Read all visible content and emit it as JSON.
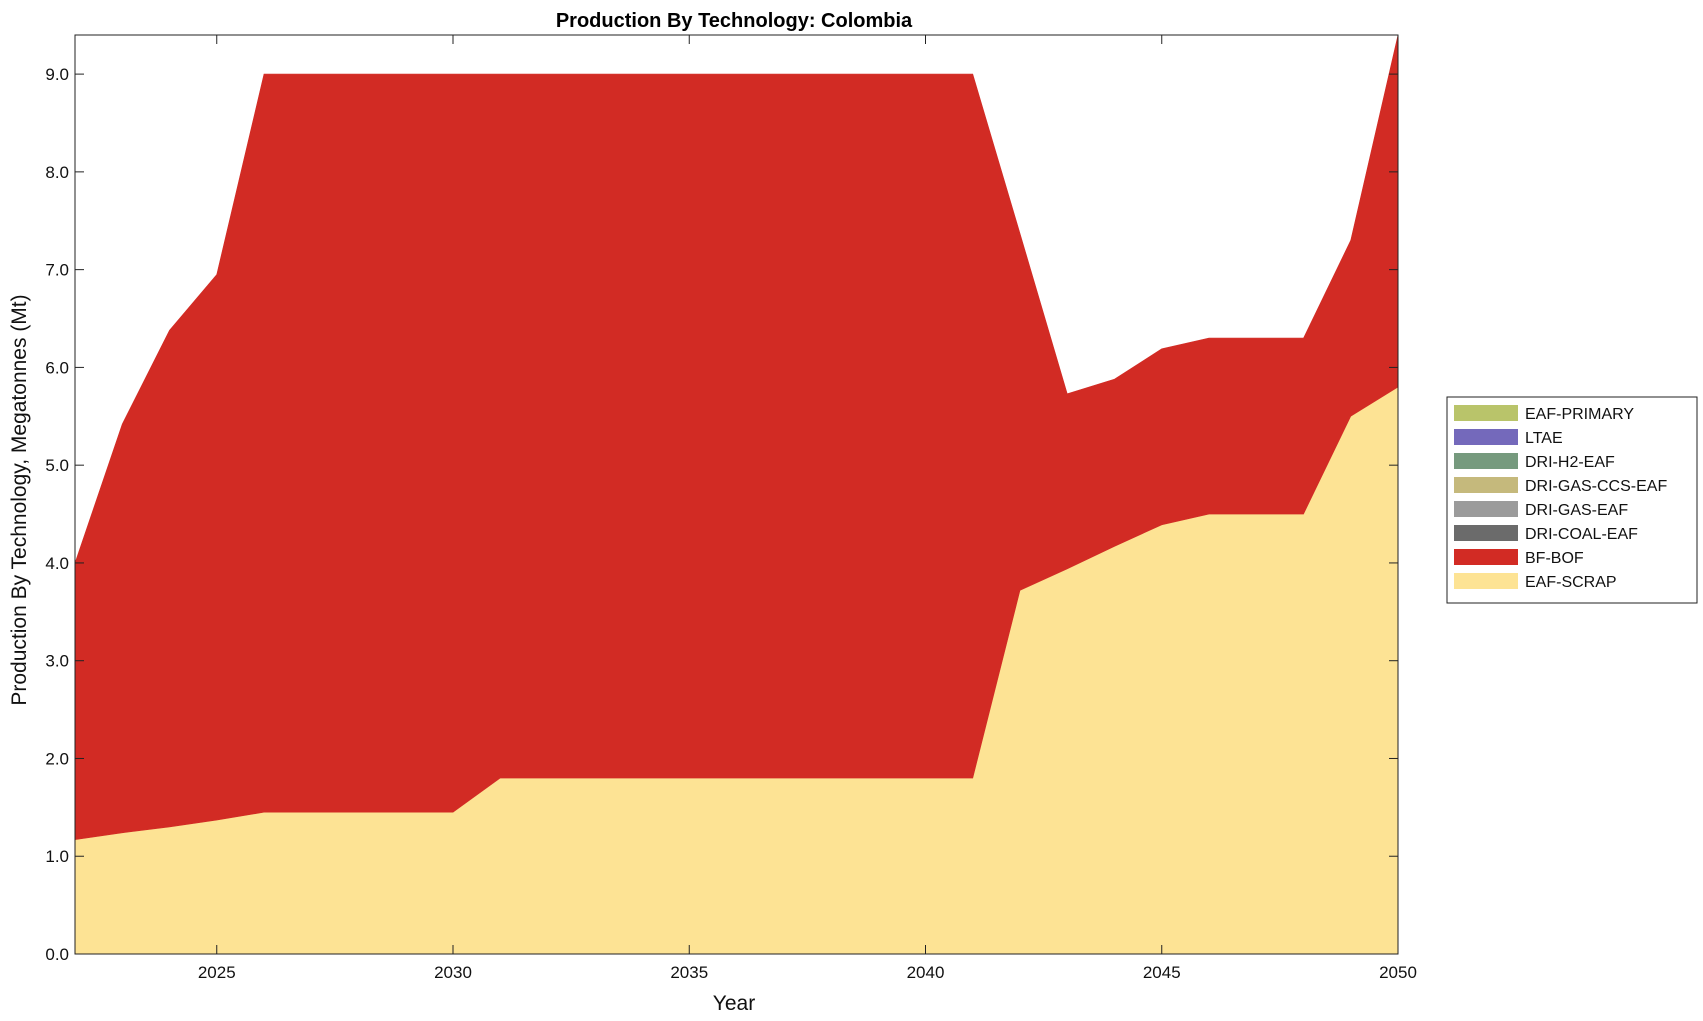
{
  "chart_data": {
    "type": "area",
    "stacked": true,
    "title": "Production By Technology: Colombia",
    "xlabel": "Year",
    "ylabel": "Production By Technology, Megatonnes (Mt)",
    "xlim": [
      2022,
      2050
    ],
    "ylim": [
      0,
      9.4
    ],
    "xticks": [
      "2025",
      "2030",
      "2035",
      "2040",
      "2045",
      "2050"
    ],
    "yticks": [
      "0.0",
      "1.0",
      "2.0",
      "3.0",
      "4.0",
      "5.0",
      "6.0",
      "7.0",
      "8.0",
      "9.0"
    ],
    "grid": false,
    "legend_position": "right",
    "x": [
      2022,
      2023,
      2024,
      2025,
      2026,
      2027,
      2028,
      2029,
      2030,
      2031,
      2032,
      2033,
      2034,
      2035,
      2036,
      2037,
      2038,
      2039,
      2040,
      2041,
      2042,
      2043,
      2044,
      2045,
      2046,
      2047,
      2048,
      2049,
      2050
    ],
    "series": [
      {
        "name": "EAF-SCRAP",
        "color": "#fde394",
        "values": [
          1.17,
          1.24,
          1.3,
          1.37,
          1.45,
          1.45,
          1.45,
          1.45,
          1.45,
          1.8,
          1.8,
          1.8,
          1.8,
          1.8,
          1.8,
          1.8,
          1.8,
          1.8,
          1.8,
          1.8,
          3.72,
          3.94,
          4.17,
          4.39,
          4.5,
          4.5,
          4.5,
          5.5,
          5.8
        ]
      },
      {
        "name": "BF-BOF",
        "color": "#d22b24",
        "values": [
          2.83,
          4.18,
          5.08,
          5.58,
          7.55,
          7.55,
          7.55,
          7.55,
          7.55,
          7.2,
          7.2,
          7.2,
          7.2,
          7.2,
          7.2,
          7.2,
          7.2,
          7.2,
          7.2,
          7.2,
          3.65,
          1.79,
          1.71,
          1.8,
          1.8,
          1.8,
          1.8,
          1.8,
          3.6
        ]
      },
      {
        "name": "DRI-COAL-EAF",
        "color": "#6b6b6b",
        "values": [
          0,
          0,
          0,
          0,
          0,
          0,
          0,
          0,
          0,
          0,
          0,
          0,
          0,
          0,
          0,
          0,
          0,
          0,
          0,
          0,
          0,
          0,
          0,
          0,
          0,
          0,
          0,
          0,
          0
        ]
      },
      {
        "name": "DRI-GAS-EAF",
        "color": "#9b9b9b",
        "values": [
          0,
          0,
          0,
          0,
          0,
          0,
          0,
          0,
          0,
          0,
          0,
          0,
          0,
          0,
          0,
          0,
          0,
          0,
          0,
          0,
          0,
          0,
          0,
          0,
          0,
          0,
          0,
          0,
          0
        ]
      },
      {
        "name": "DRI-GAS-CCS-EAF",
        "color": "#c5b97c",
        "values": [
          0,
          0,
          0,
          0,
          0,
          0,
          0,
          0,
          0,
          0,
          0,
          0,
          0,
          0,
          0,
          0,
          0,
          0,
          0,
          0,
          0,
          0,
          0,
          0,
          0,
          0,
          0,
          0,
          0
        ]
      },
      {
        "name": "DRI-H2-EAF",
        "color": "#769a7e",
        "values": [
          0,
          0,
          0,
          0,
          0,
          0,
          0,
          0,
          0,
          0,
          0,
          0,
          0,
          0,
          0,
          0,
          0,
          0,
          0,
          0,
          0,
          0,
          0,
          0,
          0,
          0,
          0,
          0,
          0
        ]
      },
      {
        "name": "LTAE",
        "color": "#7469bb",
        "values": [
          0,
          0,
          0,
          0,
          0,
          0,
          0,
          0,
          0,
          0,
          0,
          0,
          0,
          0,
          0,
          0,
          0,
          0,
          0,
          0,
          0,
          0,
          0,
          0,
          0,
          0,
          0,
          0,
          0
        ]
      },
      {
        "name": "EAF-PRIMARY",
        "color": "#b9c46a",
        "values": [
          0,
          0,
          0,
          0,
          0,
          0,
          0,
          0,
          0,
          0,
          0,
          0,
          0,
          0,
          0,
          0,
          0,
          0,
          0,
          0,
          0,
          0,
          0,
          0,
          0,
          0,
          0,
          0,
          0
        ]
      }
    ],
    "legend_order": [
      "EAF-PRIMARY",
      "LTAE",
      "DRI-H2-EAF",
      "DRI-GAS-CCS-EAF",
      "DRI-GAS-EAF",
      "DRI-COAL-EAF",
      "BF-BOF",
      "EAF-SCRAP"
    ]
  }
}
